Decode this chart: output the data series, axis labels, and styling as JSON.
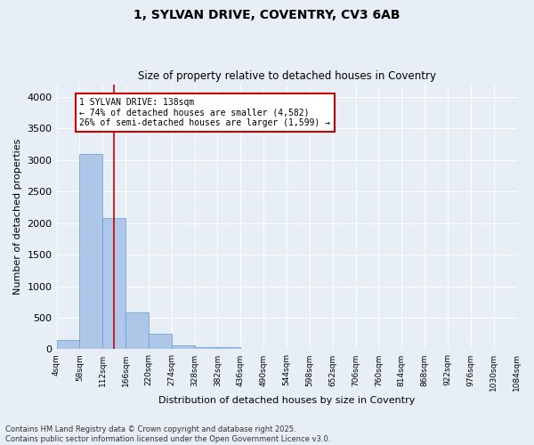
{
  "title": "1, SYLVAN DRIVE, COVENTRY, CV3 6AB",
  "subtitle": "Size of property relative to detached houses in Coventry",
  "xlabel": "Distribution of detached houses by size in Coventry",
  "ylabel": "Number of detached properties",
  "bar_color": "#aec6e8",
  "bar_edge_color": "#5b9bd5",
  "background_color": "#e8eef5",
  "grid_color": "#ffffff",
  "vline_x": 138,
  "vline_color": "#cc0000",
  "annotation_text": "1 SYLVAN DRIVE: 138sqm\n← 74% of detached houses are smaller (4,582)\n26% of semi-detached houses are larger (1,599) →",
  "annotation_box_color": "#ffffff",
  "annotation_box_edge_color": "#cc0000",
  "bins": [
    4,
    58,
    112,
    166,
    220,
    274,
    328,
    382,
    436,
    490,
    544,
    598,
    652,
    706,
    760,
    814,
    868,
    922,
    976,
    1030,
    1084
  ],
  "bin_labels": [
    "4sqm",
    "58sqm",
    "112sqm",
    "166sqm",
    "220sqm",
    "274sqm",
    "328sqm",
    "382sqm",
    "436sqm",
    "490sqm",
    "544sqm",
    "598sqm",
    "652sqm",
    "706sqm",
    "760sqm",
    "814sqm",
    "868sqm",
    "922sqm",
    "976sqm",
    "1030sqm",
    "1084sqm"
  ],
  "bar_heights": [
    150,
    3100,
    2080,
    580,
    240,
    65,
    35,
    30,
    0,
    0,
    0,
    0,
    0,
    0,
    0,
    0,
    0,
    0,
    0,
    0
  ],
  "ylim": [
    0,
    4200
  ],
  "yticks": [
    0,
    500,
    1000,
    1500,
    2000,
    2500,
    3000,
    3500,
    4000
  ],
  "footnote": "Contains HM Land Registry data © Crown copyright and database right 2025.\nContains public sector information licensed under the Open Government Licence v3.0.",
  "fig_width": 6.0,
  "fig_height": 5.0,
  "dpi": 100
}
